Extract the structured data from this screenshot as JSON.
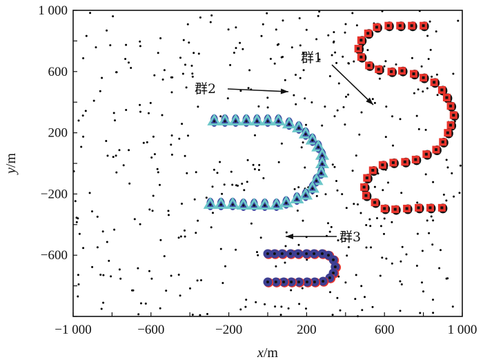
{
  "chart_data": {
    "type": "scatter",
    "title": "",
    "xlabel": "x/m",
    "ylabel": "y/m",
    "xlabel_var": "x",
    "ylabel_var": "y",
    "unit": "/m",
    "xlim": [
      -1000,
      1000
    ],
    "ylim": [
      -1000,
      1000
    ],
    "xticks": [
      -1000,
      -800,
      -600,
      -400,
      -200,
      0,
      200,
      400,
      600,
      800,
      1000
    ],
    "yticks": [
      -1000,
      -800,
      -600,
      -400,
      -200,
      0,
      200,
      400,
      600,
      800,
      1000
    ],
    "xtick_labels": [
      "−1 000",
      "−600",
      "−200",
      "200",
      "600",
      "1 000"
    ],
    "xtick_label_values": [
      -1000,
      -600,
      -200,
      200,
      600,
      1000
    ],
    "ytick_labels": [
      "1 000",
      "600",
      "200",
      "−200",
      "−600"
    ],
    "ytick_label_values": [
      1000,
      600,
      200,
      -200,
      -600
    ],
    "grid": false,
    "clutter": {
      "name": "clutter",
      "count": 430,
      "distribution": "uniform",
      "color": "#000000"
    },
    "series": [
      {
        "name": "群1",
        "marker": "square",
        "color": "#e8342c",
        "shadow": "#111111",
        "points": [
          [
            800,
            900
          ],
          [
            740,
            900
          ],
          [
            680,
            900
          ],
          [
            620,
            900
          ],
          [
            560,
            890
          ],
          [
            515,
            850
          ],
          [
            480,
            805
          ],
          [
            465,
            750
          ],
          [
            480,
            695
          ],
          [
            520,
            640
          ],
          [
            570,
            615
          ],
          [
            635,
            600
          ],
          [
            690,
            605
          ],
          [
            750,
            585
          ],
          [
            800,
            560
          ],
          [
            855,
            530
          ],
          [
            895,
            480
          ],
          [
            920,
            430
          ],
          [
            940,
            375
          ],
          [
            955,
            315
          ],
          [
            940,
            250
          ],
          [
            925,
            200
          ],
          [
            900,
            140
          ],
          [
            865,
            90
          ],
          [
            815,
            60
          ],
          [
            760,
            25
          ],
          [
            705,
            10
          ],
          [
            645,
            5
          ],
          [
            590,
            -10
          ],
          [
            540,
            -45
          ],
          [
            510,
            -95
          ],
          [
            495,
            -155
          ],
          [
            505,
            -210
          ],
          [
            550,
            -255
          ],
          [
            600,
            -295
          ],
          [
            655,
            -300
          ],
          [
            715,
            -295
          ],
          [
            775,
            -290
          ],
          [
            835,
            -290
          ],
          [
            895,
            -290
          ]
        ]
      },
      {
        "name": "群2",
        "marker": "triangle",
        "color": "#6cc7c9",
        "shadow": "#3a46a0",
        "points": [
          [
            -275,
            280
          ],
          [
            -220,
            280
          ],
          [
            -165,
            280
          ],
          [
            -110,
            280
          ],
          [
            -55,
            280
          ],
          [
            0,
            280
          ],
          [
            55,
            280
          ],
          [
            110,
            260
          ],
          [
            160,
            235
          ],
          [
            195,
            195
          ],
          [
            230,
            155
          ],
          [
            260,
            110
          ],
          [
            280,
            55
          ],
          [
            280,
            0
          ],
          [
            275,
            -60
          ],
          [
            250,
            -110
          ],
          [
            230,
            -160
          ],
          [
            195,
            -205
          ],
          [
            150,
            -230
          ],
          [
            95,
            -255
          ],
          [
            45,
            -270
          ],
          [
            -15,
            -270
          ],
          [
            -70,
            -270
          ],
          [
            -125,
            -270
          ],
          [
            -180,
            -265
          ],
          [
            -240,
            -265
          ],
          [
            -295,
            -265
          ]
        ]
      },
      {
        "name": "群3",
        "marker": "circle",
        "color": "#3d3f92",
        "shadow": "#e8342c",
        "points": [
          [
            0,
            -590
          ],
          [
            35,
            -590
          ],
          [
            74,
            -590
          ],
          [
            117,
            -590
          ],
          [
            156,
            -590
          ],
          [
            199,
            -590
          ],
          [
            238,
            -590
          ],
          [
            280,
            -590
          ],
          [
            312,
            -600
          ],
          [
            337,
            -630
          ],
          [
            347,
            -676
          ],
          [
            337,
            -716
          ],
          [
            319,
            -748
          ],
          [
            284,
            -770
          ],
          [
            241,
            -775
          ],
          [
            202,
            -775
          ],
          [
            160,
            -775
          ],
          [
            121,
            -775
          ],
          [
            82,
            -775
          ],
          [
            42,
            -775
          ],
          [
            0,
            -775
          ]
        ]
      }
    ],
    "annotations": [
      {
        "text": "群1",
        "target_series": "群1"
      },
      {
        "text": "群2",
        "target_series": "群2"
      },
      {
        "text": "群3",
        "target_series": "群3"
      }
    ]
  }
}
